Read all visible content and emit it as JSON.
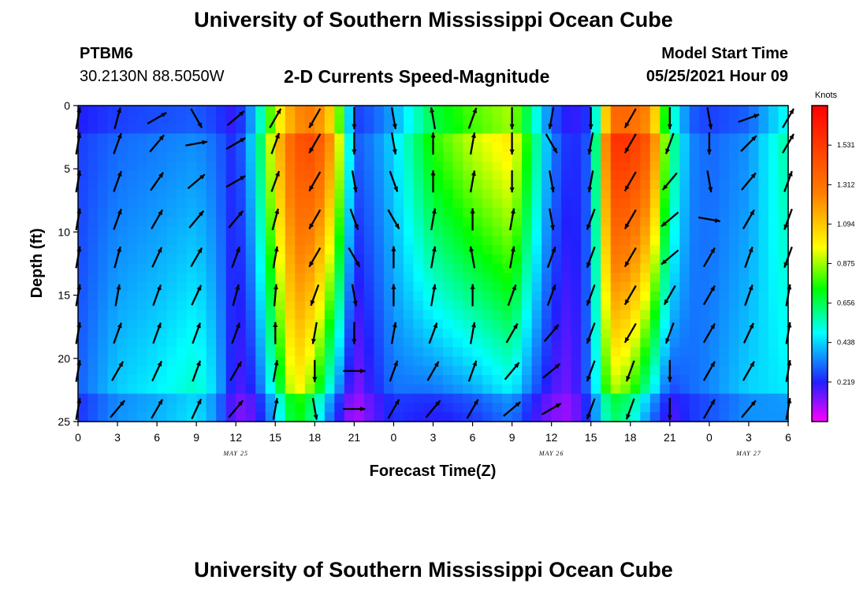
{
  "header": {
    "title": "University of Southern Mississippi Ocean Cube",
    "station_id": "PTBM6",
    "coordinates": "30.2130N  88.5050W",
    "subtitle": "2-D Currents Speed-Magnitude",
    "model_start_label": "Model Start Time",
    "model_start_value": "05/25/2021 Hour 09"
  },
  "footer": {
    "title": "University of Southern Mississippi Ocean Cube"
  },
  "chart_data": {
    "type": "heatmap",
    "title": "2-D Currents Speed-Magnitude",
    "xlabel": "Forecast Time(Z)",
    "ylabel": "Depth (ft)",
    "x_ticks": [
      "0",
      "3",
      "6",
      "9",
      "12",
      "15",
      "18",
      "21",
      "0",
      "3",
      "6",
      "9",
      "12",
      "15",
      "18",
      "21",
      "0",
      "3",
      "6"
    ],
    "x_range_hours": [
      0,
      54
    ],
    "date_labels": [
      {
        "text": "MAY 25",
        "hour": 12
      },
      {
        "text": "MAY 26",
        "hour": 36
      },
      {
        "text": "MAY 27",
        "hour": 51
      }
    ],
    "y_ticks": [
      "0",
      "5",
      "10",
      "15",
      "20",
      "25"
    ],
    "y_range": [
      0,
      25
    ],
    "y_inverted": true,
    "colorbar": {
      "unit": "Knots",
      "tick_labels": [
        "0.219",
        "0.438",
        "0.656",
        "0.875",
        "1.094",
        "1.312",
        "1.531"
      ],
      "range": [
        0,
        1.75
      ],
      "colors": [
        "#ff00ff",
        "#2020ff",
        "#00ffff",
        "#00ff00",
        "#ffff00",
        "#ff8000",
        "#ff0000"
      ]
    },
    "speed_profile": {
      "x_hours": [
        0,
        3,
        6,
        9,
        10.5,
        12,
        13.5,
        15,
        16.5,
        18,
        19.5,
        21,
        22.5,
        24,
        27,
        30,
        33,
        34.5,
        36,
        37.5,
        39,
        40.5,
        42,
        43.5,
        45,
        46.5,
        48,
        51,
        54
      ],
      "upper_speed": [
        0.25,
        0.3,
        0.32,
        0.34,
        0.3,
        0.22,
        0.5,
        1.1,
        1.45,
        1.52,
        1.2,
        0.3,
        0.35,
        0.45,
        0.8,
        0.95,
        1.05,
        0.7,
        0.35,
        0.22,
        0.3,
        1.6,
        1.6,
        1.45,
        0.7,
        0.35,
        0.3,
        0.35,
        0.6
      ],
      "lower_speed": [
        0.3,
        0.45,
        0.5,
        0.58,
        0.45,
        0.15,
        0.2,
        0.5,
        0.95,
        0.7,
        0.3,
        0.08,
        0.2,
        0.3,
        0.25,
        0.3,
        0.4,
        0.25,
        0.15,
        0.12,
        0.35,
        0.8,
        0.7,
        0.4,
        0.2,
        0.3,
        0.35,
        0.45,
        0.45
      ]
    },
    "vectors": {
      "x_hours": [
        0,
        3,
        6,
        9,
        12,
        15,
        18,
        21,
        24,
        27,
        30,
        33,
        36,
        39,
        42,
        45,
        48,
        51,
        54
      ],
      "depths_ft": [
        1,
        3,
        6,
        9,
        12,
        15,
        18,
        21,
        24
      ],
      "direction_deg": [
        [
          10,
          10,
          10,
          10,
          10,
          10,
          10,
          10,
          10
        ],
        [
          15,
          20,
          20,
          20,
          15,
          10,
          20,
          30,
          40
        ],
        [
          60,
          40,
          35,
          30,
          25,
          20,
          20,
          25,
          30
        ],
        [
          150,
          80,
          50,
          40,
          30,
          25,
          20,
          20,
          25
        ],
        [
          50,
          60,
          60,
          40,
          20,
          15,
          20,
          30,
          40
        ],
        [
          30,
          20,
          20,
          15,
          10,
          5,
          0,
          10,
          10
        ],
        [
          210,
          210,
          210,
          210,
          210,
          200,
          190,
          180,
          170
        ],
        [
          180,
          180,
          170,
          160,
          150,
          170,
          180,
          90,
          90
        ],
        [
          170,
          170,
          160,
          150,
          0,
          0,
          10,
          20,
          30
        ],
        [
          350,
          0,
          0,
          10,
          10,
          10,
          20,
          30,
          40
        ],
        [
          20,
          10,
          10,
          0,
          350,
          0,
          10,
          20,
          30
        ],
        [
          180,
          180,
          180,
          10,
          10,
          20,
          30,
          40,
          50
        ],
        [
          190,
          150,
          170,
          170,
          20,
          20,
          40,
          50,
          60
        ],
        [
          180,
          190,
          190,
          200,
          200,
          200,
          200,
          200,
          200
        ],
        [
          210,
          210,
          210,
          210,
          210,
          210,
          210,
          200,
          200
        ],
        [
          180,
          200,
          220,
          230,
          230,
          210,
          200,
          180,
          180
        ],
        [
          170,
          180,
          170,
          100,
          30,
          30,
          30,
          30,
          30
        ],
        [
          70,
          45,
          40,
          30,
          20,
          20,
          25,
          30,
          40
        ],
        [
          30,
          30,
          20,
          200,
          200,
          10,
          10,
          10,
          10
        ]
      ]
    }
  }
}
